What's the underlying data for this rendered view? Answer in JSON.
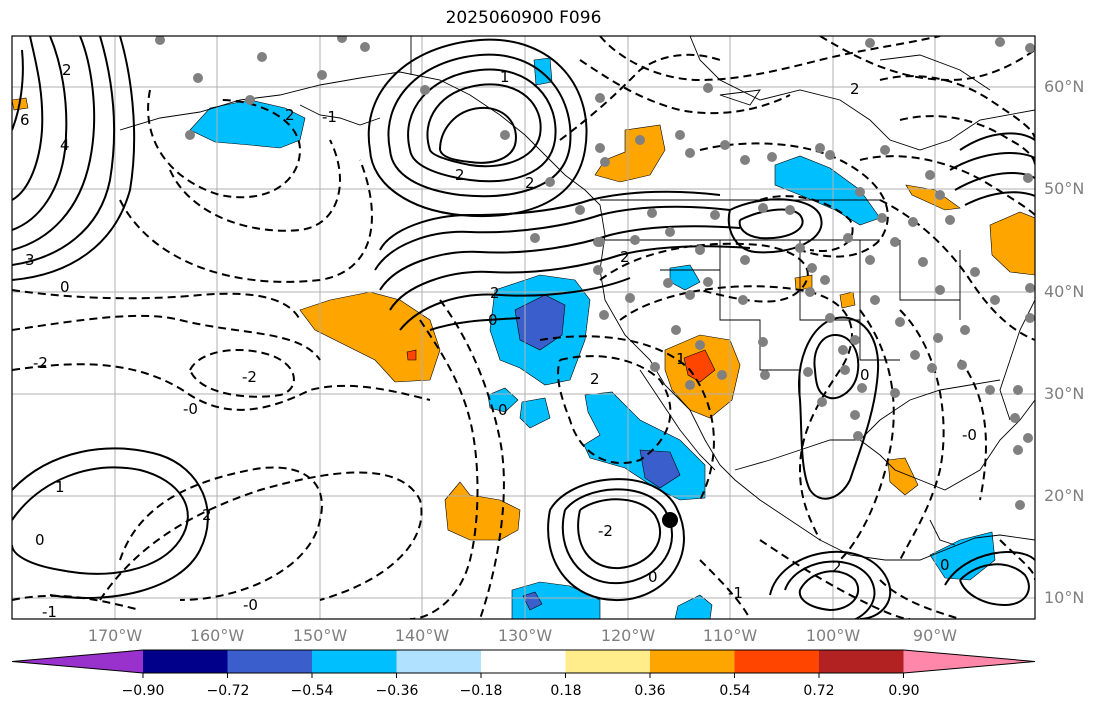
{
  "title": "2025060900 F096",
  "lat_labels": [
    "60°N",
    "50°N",
    "40°N",
    "30°N",
    "20°N",
    "10°N"
  ],
  "lon_labels": [
    "170°W",
    "160°W",
    "150°W",
    "140°W",
    "130°W",
    "120°W",
    "110°W",
    "100°W",
    "90°W"
  ],
  "colorbar": {
    "ticks": [
      "−0.90",
      "−0.72",
      "−0.54",
      "−0.36",
      "−0.18",
      "0.18",
      "0.36",
      "0.54",
      "0.72",
      "0.90"
    ],
    "colors": [
      "#9932cc",
      "#00008b",
      "#3a5fcd",
      "#00bfff",
      "#b0e2ff",
      "#ffffff",
      "#ffec8b",
      "#ffa500",
      "#ff4500",
      "#b22222",
      "#ff88aa"
    ]
  },
  "contour_labels": [
    "2",
    "6",
    "4",
    "3",
    "2",
    "-1",
    "0",
    "2",
    "1",
    "2",
    "-2",
    "-0",
    "1",
    "0",
    "-1",
    "2",
    "-2",
    "-0",
    "0",
    "2",
    "2",
    "0",
    "1",
    "0",
    "-2",
    "-1",
    "0",
    "-0",
    "2",
    "0",
    "2",
    "2"
  ],
  "point_marker": "black-dot"
}
